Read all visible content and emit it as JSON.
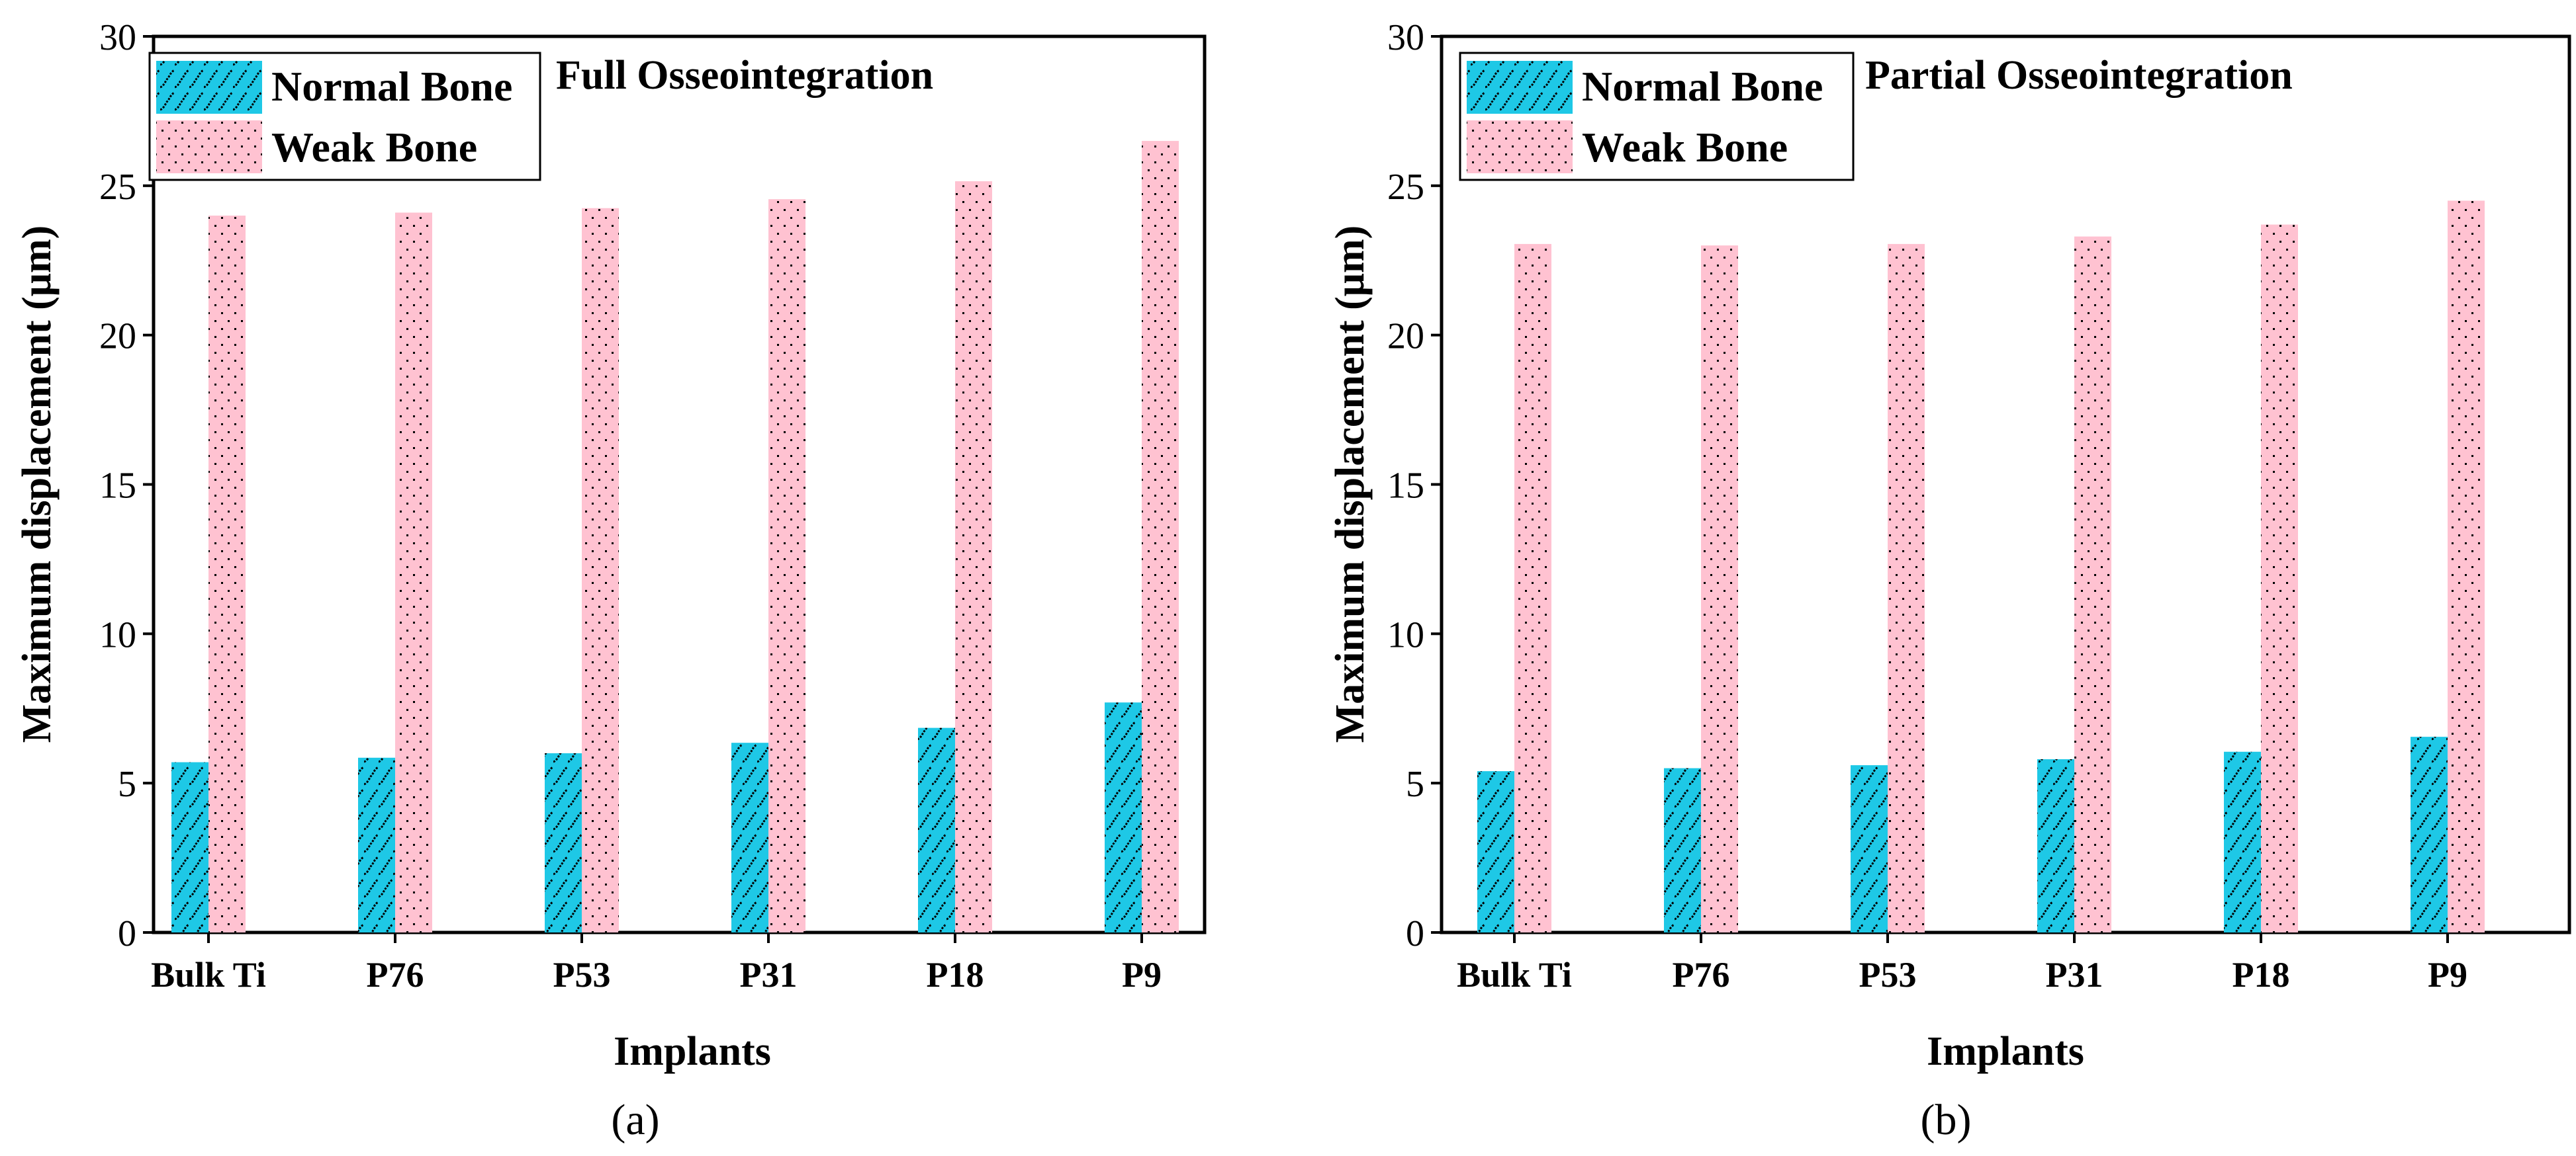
{
  "figure": {
    "panel_labels": [
      "(a)",
      "(b)"
    ]
  },
  "chart_data": [
    {
      "type": "bar",
      "title": "Full Osseointegration",
      "xlabel": "Implants",
      "ylabel": "Maximum displacement (μm)",
      "ylim": [
        0,
        30
      ],
      "yticks": [
        0,
        5,
        10,
        15,
        20,
        25,
        30
      ],
      "categories": [
        "Bulk Ti",
        "P76",
        "P53",
        "P31",
        "P18",
        "P9"
      ],
      "series": [
        {
          "name": "Normal Bone",
          "values": [
            5.7,
            5.85,
            6.0,
            6.35,
            6.85,
            7.7
          ]
        },
        {
          "name": "Weak Bone",
          "values": [
            24.0,
            24.1,
            24.25,
            24.55,
            25.15,
            26.5
          ]
        }
      ],
      "legend_position": "top-left",
      "grid": false
    },
    {
      "type": "bar",
      "title": "Partial Osseointegration",
      "xlabel": "Implants",
      "ylabel": "Maximum displacement (μm)",
      "ylim": [
        0,
        30
      ],
      "yticks": [
        0,
        5,
        10,
        15,
        20,
        25,
        30
      ],
      "categories": [
        "Bulk Ti",
        "P76",
        "P53",
        "P31",
        "P18",
        "P9"
      ],
      "series": [
        {
          "name": "Normal Bone",
          "values": [
            5.4,
            5.5,
            5.6,
            5.8,
            6.05,
            6.55
          ]
        },
        {
          "name": "Weak Bone",
          "values": [
            23.05,
            23.0,
            23.05,
            23.3,
            23.7,
            24.5
          ]
        }
      ],
      "legend_position": "top-left",
      "grid": false
    }
  ],
  "colors": {
    "normal_bone": "#1ec8e6",
    "weak_bone": "#ffc2d1",
    "hatch": "#000000"
  }
}
